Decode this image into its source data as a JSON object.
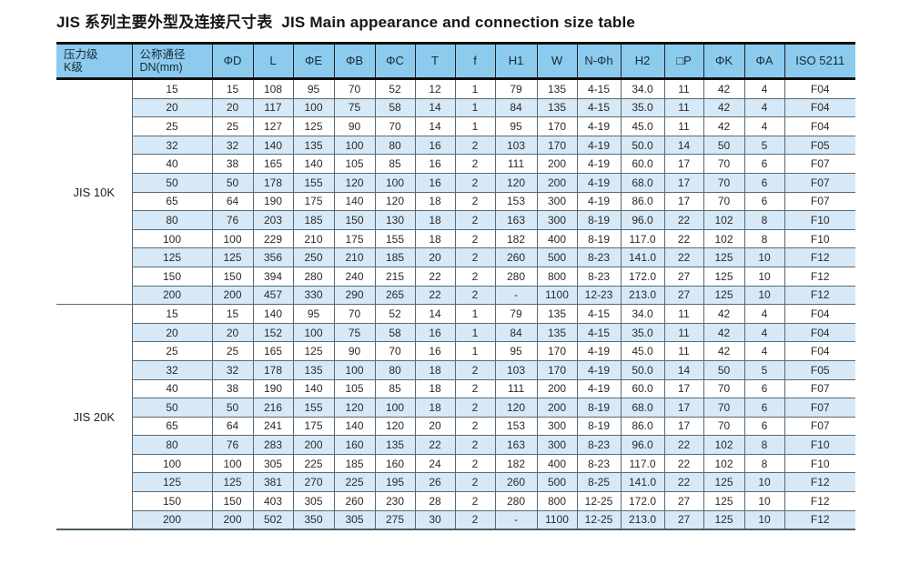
{
  "title": "JIS 系列主要外型及连接尺寸表  JIS Main appearance and connection size table",
  "colors": {
    "header_bg": "#8CCBEE",
    "stripe_bg": "#D7E9F7",
    "thick_border": "#101010",
    "grid_border": "#5a6a74"
  },
  "table": {
    "headers": [
      "压力级\nK级",
      "公称通径\nDN(mm)",
      "ΦD",
      "L",
      "ΦE",
      "ΦB",
      "ΦC",
      "T",
      "f",
      "H1",
      "W",
      "N-Φh",
      "H2",
      "□P",
      "ΦK",
      "ΦA",
      "ISO 5211"
    ],
    "groups": [
      {
        "label": "JIS 10K",
        "rows": [
          [
            "15",
            "15",
            "108",
            "95",
            "70",
            "52",
            "12",
            "1",
            "79",
            "135",
            "4-15",
            "34.0",
            "11",
            "42",
            "4",
            "F04"
          ],
          [
            "20",
            "20",
            "117",
            "100",
            "75",
            "58",
            "14",
            "1",
            "84",
            "135",
            "4-15",
            "35.0",
            "11",
            "42",
            "4",
            "F04"
          ],
          [
            "25",
            "25",
            "127",
            "125",
            "90",
            "70",
            "14",
            "1",
            "95",
            "170",
            "4-19",
            "45.0",
            "11",
            "42",
            "4",
            "F04"
          ],
          [
            "32",
            "32",
            "140",
            "135",
            "100",
            "80",
            "16",
            "2",
            "103",
            "170",
            "4-19",
            "50.0",
            "14",
            "50",
            "5",
            "F05"
          ],
          [
            "40",
            "38",
            "165",
            "140",
            "105",
            "85",
            "16",
            "2",
            "111",
            "200",
            "4-19",
            "60.0",
            "17",
            "70",
            "6",
            "F07"
          ],
          [
            "50",
            "50",
            "178",
            "155",
            "120",
            "100",
            "16",
            "2",
            "120",
            "200",
            "4-19",
            "68.0",
            "17",
            "70",
            "6",
            "F07"
          ],
          [
            "65",
            "64",
            "190",
            "175",
            "140",
            "120",
            "18",
            "2",
            "153",
            "300",
            "4-19",
            "86.0",
            "17",
            "70",
            "6",
            "F07"
          ],
          [
            "80",
            "76",
            "203",
            "185",
            "150",
            "130",
            "18",
            "2",
            "163",
            "300",
            "8-19",
            "96.0",
            "22",
            "102",
            "8",
            "F10"
          ],
          [
            "100",
            "100",
            "229",
            "210",
            "175",
            "155",
            "18",
            "2",
            "182",
            "400",
            "8-19",
            "117.0",
            "22",
            "102",
            "8",
            "F10"
          ],
          [
            "125",
            "125",
            "356",
            "250",
            "210",
            "185",
            "20",
            "2",
            "260",
            "500",
            "8-23",
            "141.0",
            "22",
            "125",
            "10",
            "F12"
          ],
          [
            "150",
            "150",
            "394",
            "280",
            "240",
            "215",
            "22",
            "2",
            "280",
            "800",
            "8-23",
            "172.0",
            "27",
            "125",
            "10",
            "F12"
          ],
          [
            "200",
            "200",
            "457",
            "330",
            "290",
            "265",
            "22",
            "2",
            "-",
            "1100",
            "12-23",
            "213.0",
            "27",
            "125",
            "10",
            "F12"
          ]
        ]
      },
      {
        "label": "JIS 20K",
        "rows": [
          [
            "15",
            "15",
            "140",
            "95",
            "70",
            "52",
            "14",
            "1",
            "79",
            "135",
            "4-15",
            "34.0",
            "11",
            "42",
            "4",
            "F04"
          ],
          [
            "20",
            "20",
            "152",
            "100",
            "75",
            "58",
            "16",
            "1",
            "84",
            "135",
            "4-15",
            "35.0",
            "11",
            "42",
            "4",
            "F04"
          ],
          [
            "25",
            "25",
            "165",
            "125",
            "90",
            "70",
            "16",
            "1",
            "95",
            "170",
            "4-19",
            "45.0",
            "11",
            "42",
            "4",
            "F04"
          ],
          [
            "32",
            "32",
            "178",
            "135",
            "100",
            "80",
            "18",
            "2",
            "103",
            "170",
            "4-19",
            "50.0",
            "14",
            "50",
            "5",
            "F05"
          ],
          [
            "40",
            "38",
            "190",
            "140",
            "105",
            "85",
            "18",
            "2",
            "111",
            "200",
            "4-19",
            "60.0",
            "17",
            "70",
            "6",
            "F07"
          ],
          [
            "50",
            "50",
            "216",
            "155",
            "120",
            "100",
            "18",
            "2",
            "120",
            "200",
            "8-19",
            "68.0",
            "17",
            "70",
            "6",
            "F07"
          ],
          [
            "65",
            "64",
            "241",
            "175",
            "140",
            "120",
            "20",
            "2",
            "153",
            "300",
            "8-19",
            "86.0",
            "17",
            "70",
            "6",
            "F07"
          ],
          [
            "80",
            "76",
            "283",
            "200",
            "160",
            "135",
            "22",
            "2",
            "163",
            "300",
            "8-23",
            "96.0",
            "22",
            "102",
            "8",
            "F10"
          ],
          [
            "100",
            "100",
            "305",
            "225",
            "185",
            "160",
            "24",
            "2",
            "182",
            "400",
            "8-23",
            "117.0",
            "22",
            "102",
            "8",
            "F10"
          ],
          [
            "125",
            "125",
            "381",
            "270",
            "225",
            "195",
            "26",
            "2",
            "260",
            "500",
            "8-25",
            "141.0",
            "22",
            "125",
            "10",
            "F12"
          ],
          [
            "150",
            "150",
            "403",
            "305",
            "260",
            "230",
            "28",
            "2",
            "280",
            "800",
            "12-25",
            "172.0",
            "27",
            "125",
            "10",
            "F12"
          ],
          [
            "200",
            "200",
            "502",
            "350",
            "305",
            "275",
            "30",
            "2",
            "-",
            "1100",
            "12-25",
            "213.0",
            "27",
            "125",
            "10",
            "F12"
          ]
        ]
      }
    ]
  }
}
